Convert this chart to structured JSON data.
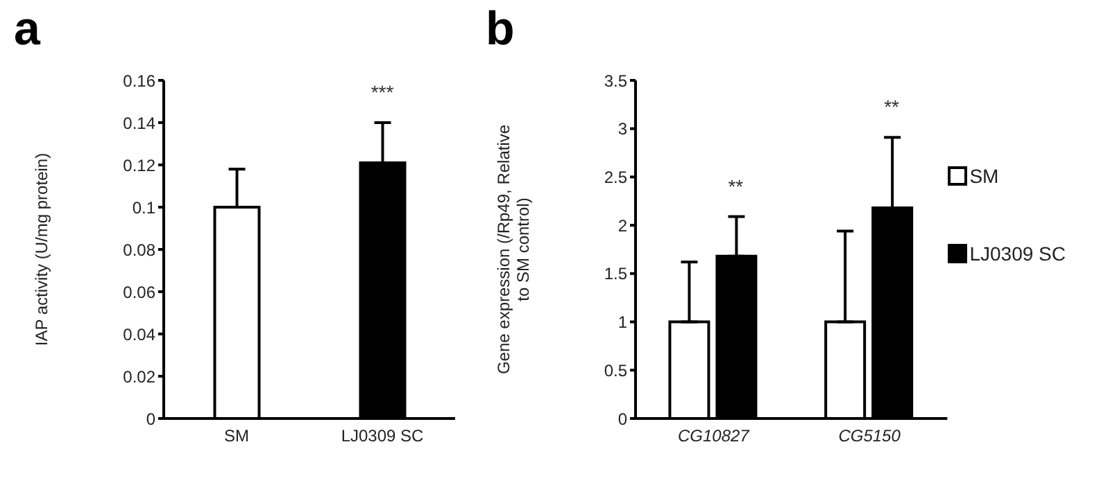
{
  "chart_data": [
    {
      "type": "bar",
      "title": "a",
      "categories": [
        "SM",
        "LJ0309 SC"
      ],
      "values": [
        0.1,
        0.121
      ],
      "colors": [
        "#ffffff",
        "#000000"
      ],
      "errors": [
        [
          0.1,
          0.118
        ],
        [
          0.121,
          0.14
        ]
      ],
      "ylabel": "IAP activity (U/mg protein)",
      "ylim": [
        0,
        0.16
      ],
      "yticks": [
        0,
        0.02,
        0.04,
        0.06,
        0.08,
        0.1,
        0.12,
        0.14,
        0.16
      ],
      "annotations": [
        "***"
      ],
      "grid": false,
      "legend": false
    },
    {
      "type": "bar",
      "title": "b",
      "categories": [
        "CG10827",
        "CG5150"
      ],
      "series": [
        {
          "name": "SM",
          "color": "#ffffff",
          "values": [
            1,
            1
          ],
          "errors": [
            [
              1,
              1.62
            ],
            [
              1,
              1.94
            ]
          ]
        },
        {
          "name": "LJ0309 SC",
          "color": "#000000",
          "values": [
            1.68,
            2.18
          ],
          "errors": [
            [
              1.68,
              2.09
            ],
            [
              2.18,
              2.91
            ]
          ]
        }
      ],
      "ylabel": "Gene expression (/Rp49, Relative to SM control)",
      "ylim": [
        0,
        3.5
      ],
      "yticks": [
        0,
        0.5,
        1,
        1.5,
        2,
        2.5,
        3,
        3.5
      ],
      "annotations": [
        "**",
        "**"
      ],
      "grid": false,
      "legend": "right"
    }
  ]
}
